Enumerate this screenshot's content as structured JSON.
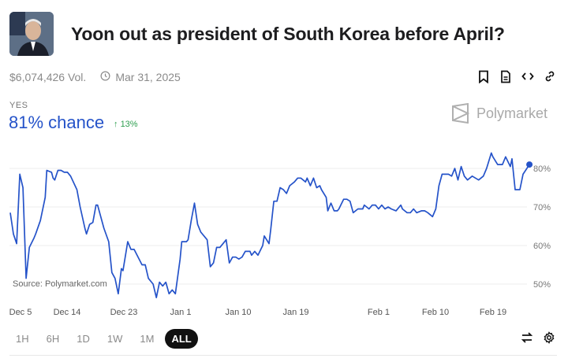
{
  "header": {
    "title": "Yoon out as president of South Korea before April?",
    "volume": "$6,074,426 Vol.",
    "end_date": "Mar 31, 2025",
    "actions": [
      "bookmark-icon",
      "document-icon",
      "embed-icon",
      "link-icon"
    ]
  },
  "outcome": {
    "label": "YES",
    "chance": "81% chance",
    "change": "13%",
    "change_color": "#2e9e4f",
    "accent": "#2553c9"
  },
  "brand": "Polymarket",
  "ranges": [
    "1H",
    "6H",
    "1D",
    "1W",
    "1M",
    "ALL"
  ],
  "active_range": "ALL",
  "chart_data": {
    "type": "line",
    "title": "",
    "source": "Source: Polymarket.com",
    "x_ticks": [
      "Dec 5",
      "Dec 14",
      "Dec 23",
      "Jan 1",
      "Jan 10",
      "Jan 19",
      "Feb 1",
      "Feb 10",
      "Feb 19"
    ],
    "y_ticks": [
      "50%",
      "60%",
      "70%",
      "80%"
    ],
    "ylim": [
      46,
      85
    ],
    "y_axis_side": "right",
    "grid": true,
    "line_color": "#2553c9",
    "series": [
      {
        "points": [
          [
            "2024-12-05T00",
            68.5
          ],
          [
            "2024-12-05T12",
            63
          ],
          [
            "2024-12-06T00",
            60.5
          ],
          [
            "2024-12-06T12",
            78.5
          ],
          [
            "2024-12-07T00",
            75
          ],
          [
            "2024-12-07T12",
            51.5
          ],
          [
            "2024-12-08T00",
            59.5
          ],
          [
            "2024-12-08T18",
            62
          ],
          [
            "2024-12-09T00",
            63
          ],
          [
            "2024-12-09T18",
            66.5
          ],
          [
            "2024-12-10T12",
            72.5
          ],
          [
            "2024-12-10T18",
            79.5
          ],
          [
            "2024-12-11T12",
            79
          ],
          [
            "2024-12-11T18",
            77.5
          ],
          [
            "2024-12-12T00",
            77
          ],
          [
            "2024-12-12T12",
            79.5
          ],
          [
            "2024-12-13T00",
            79.5
          ],
          [
            "2024-12-13T12",
            79
          ],
          [
            "2024-12-14T00",
            79
          ],
          [
            "2024-12-14T12",
            78
          ],
          [
            "2024-12-15T12",
            74.5
          ],
          [
            "2024-12-16T00",
            70
          ],
          [
            "2024-12-16T18",
            64.5
          ],
          [
            "2024-12-17T00",
            63
          ],
          [
            "2024-12-17T12",
            65.5
          ],
          [
            "2024-12-18T00",
            66
          ],
          [
            "2024-12-18T12",
            70.5
          ],
          [
            "2024-12-18T18",
            70.5
          ],
          [
            "2024-12-19T18",
            64.5
          ],
          [
            "2024-12-20T12",
            61
          ],
          [
            "2024-12-21T00",
            53
          ],
          [
            "2024-12-21T12",
            51.5
          ],
          [
            "2024-12-22T00",
            47.5
          ],
          [
            "2024-12-22T12",
            54
          ],
          [
            "2024-12-22T18",
            53.5
          ],
          [
            "2024-12-23T12",
            61
          ],
          [
            "2024-12-24T00",
            59
          ],
          [
            "2024-12-24T12",
            59
          ],
          [
            "2024-12-25T18",
            55
          ],
          [
            "2024-12-26T06",
            55
          ],
          [
            "2024-12-26T18",
            51.5
          ],
          [
            "2024-12-27T12",
            50
          ],
          [
            "2024-12-28T00",
            46.5
          ],
          [
            "2024-12-28T12",
            50.5
          ],
          [
            "2024-12-29T00",
            49.5
          ],
          [
            "2024-12-29T12",
            50.5
          ],
          [
            "2024-12-30T00",
            47.5
          ],
          [
            "2024-12-30T12",
            48.5
          ],
          [
            "2024-12-31T00",
            47.5
          ],
          [
            "2024-12-31T18",
            56.5
          ],
          [
            "2025-01-01T00",
            61
          ],
          [
            "2025-01-01T18",
            61
          ],
          [
            "2025-01-02T00",
            61.5
          ],
          [
            "2025-01-02T12",
            66.5
          ],
          [
            "2025-01-03T00",
            71
          ],
          [
            "2025-01-03T12",
            65.5
          ],
          [
            "2025-01-04T00",
            63.5
          ],
          [
            "2025-01-05T00",
            61.5
          ],
          [
            "2025-01-05T12",
            54.5
          ],
          [
            "2025-01-06T00",
            55.5
          ],
          [
            "2025-01-06T12",
            59.5
          ],
          [
            "2025-01-07T00",
            59.5
          ],
          [
            "2025-01-08T00",
            61.5
          ],
          [
            "2025-01-08T12",
            55.5
          ],
          [
            "2025-01-09T00",
            57
          ],
          [
            "2025-01-09T12",
            57
          ],
          [
            "2025-01-10T00",
            56.5
          ],
          [
            "2025-01-10T12",
            57
          ],
          [
            "2025-01-11T00",
            58.5
          ],
          [
            "2025-01-11T18",
            58.5
          ],
          [
            "2025-01-12T00",
            57.5
          ],
          [
            "2025-01-12T12",
            58.5
          ],
          [
            "2025-01-13T00",
            57.5
          ],
          [
            "2025-01-13T18",
            60
          ],
          [
            "2025-01-14T00",
            62.5
          ],
          [
            "2025-01-14T18",
            60.5
          ],
          [
            "2025-01-15T00",
            64
          ],
          [
            "2025-01-15T12",
            71.5
          ],
          [
            "2025-01-16T00",
            71.5
          ],
          [
            "2025-01-16T12",
            75
          ],
          [
            "2025-01-17T00",
            74.5
          ],
          [
            "2025-01-17T12",
            73.5
          ],
          [
            "2025-01-18T00",
            75.5
          ],
          [
            "2025-01-18T18",
            76.5
          ],
          [
            "2025-01-19T06",
            77.5
          ],
          [
            "2025-01-19T18",
            77.5
          ],
          [
            "2025-01-20T12",
            76.5
          ],
          [
            "2025-01-20T18",
            77.5
          ],
          [
            "2025-01-21T06",
            75.5
          ],
          [
            "2025-01-21T18",
            77.5
          ],
          [
            "2025-01-22T06",
            75
          ],
          [
            "2025-01-22T18",
            75.5
          ],
          [
            "2025-01-23T00",
            74.5
          ],
          [
            "2025-01-23T18",
            72.5
          ],
          [
            "2025-01-24T00",
            69
          ],
          [
            "2025-01-24T12",
            71
          ],
          [
            "2025-01-25T00",
            69
          ],
          [
            "2025-01-25T12",
            69
          ],
          [
            "2025-01-25T18",
            69.5
          ],
          [
            "2025-01-26T12",
            72
          ],
          [
            "2025-01-27T00",
            72
          ],
          [
            "2025-01-27T12",
            71.5
          ],
          [
            "2025-01-28T00",
            68.5
          ],
          [
            "2025-01-28T18",
            69.5
          ],
          [
            "2025-01-29T12",
            69.5
          ],
          [
            "2025-01-29T18",
            70.5
          ],
          [
            "2025-01-30T12",
            69.5
          ],
          [
            "2025-01-31T00",
            70.5
          ],
          [
            "2025-01-31T12",
            70.5
          ],
          [
            "2025-02-01T00",
            69.5
          ],
          [
            "2025-02-01T12",
            70.5
          ],
          [
            "2025-02-02T00",
            69.5
          ],
          [
            "2025-02-02T12",
            70
          ],
          [
            "2025-02-03T00",
            69.5
          ],
          [
            "2025-02-03T18",
            69
          ],
          [
            "2025-02-04T12",
            70.5
          ],
          [
            "2025-02-04T18",
            69.5
          ],
          [
            "2025-02-05T12",
            68.5
          ],
          [
            "2025-02-06T00",
            68.5
          ],
          [
            "2025-02-06T12",
            69.5
          ],
          [
            "2025-02-07T00",
            68.5
          ],
          [
            "2025-02-07T18",
            69
          ],
          [
            "2025-02-08T06",
            69
          ],
          [
            "2025-02-08T18",
            68.5
          ],
          [
            "2025-02-09T12",
            67.5
          ],
          [
            "2025-02-10T00",
            69.5
          ],
          [
            "2025-02-10T12",
            75.5
          ],
          [
            "2025-02-11T00",
            78.5
          ],
          [
            "2025-02-12T00",
            78.5
          ],
          [
            "2025-02-12T12",
            78
          ],
          [
            "2025-02-13T00",
            80
          ],
          [
            "2025-02-13T12",
            77
          ],
          [
            "2025-02-14T00",
            80.5
          ],
          [
            "2025-02-14T12",
            78
          ],
          [
            "2025-02-15T00",
            77
          ],
          [
            "2025-02-15T18",
            78
          ],
          [
            "2025-02-16T06",
            77.5
          ],
          [
            "2025-02-16T18",
            77
          ],
          [
            "2025-02-17T12",
            78
          ],
          [
            "2025-02-18T00",
            80
          ],
          [
            "2025-02-18T18",
            84
          ],
          [
            "2025-02-19T00",
            83
          ],
          [
            "2025-02-19T18",
            81
          ],
          [
            "2025-02-20T12",
            81
          ],
          [
            "2025-02-21T00",
            83
          ],
          [
            "2025-02-21T18",
            80.5
          ],
          [
            "2025-02-22T00",
            82.5
          ],
          [
            "2025-02-22T12",
            74.5
          ],
          [
            "2025-02-23T06",
            74.5
          ],
          [
            "2025-02-23T18",
            78.5
          ],
          [
            "2025-02-24T18",
            81
          ]
        ]
      }
    ]
  }
}
